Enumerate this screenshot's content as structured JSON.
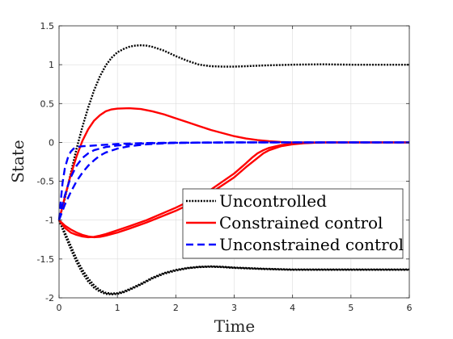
{
  "chart_data": {
    "type": "line",
    "title": "",
    "xlabel": "Time",
    "ylabel": "State",
    "xlim": [
      0,
      6
    ],
    "ylim": [
      -2,
      1.5
    ],
    "xticks": [
      0,
      1,
      2,
      3,
      4,
      5,
      6
    ],
    "yticks": [
      -2,
      -1.5,
      -1,
      -0.5,
      0,
      0.5,
      1,
      1.5
    ],
    "xtick_labels": [
      "0",
      "1",
      "2",
      "3",
      "4",
      "5",
      "6"
    ],
    "ytick_labels": [
      "-2",
      "-1.5",
      "-1",
      "-0.5",
      "0",
      "0.5",
      "1",
      "1.5"
    ],
    "grid": true,
    "legend_position": "lower-right",
    "series": [
      {
        "name": "Uncontrolled",
        "color": "#000000",
        "style": "dotted",
        "lines": [
          [
            [
              0,
              -1
            ],
            [
              0.1,
              -0.72
            ],
            [
              0.2,
              -0.4
            ],
            [
              0.3,
              -0.08
            ],
            [
              0.4,
              0.2
            ],
            [
              0.5,
              0.45
            ],
            [
              0.6,
              0.67
            ],
            [
              0.7,
              0.85
            ],
            [
              0.8,
              0.99
            ],
            [
              0.9,
              1.09
            ],
            [
              1.0,
              1.16
            ],
            [
              1.1,
              1.2
            ],
            [
              1.2,
              1.23
            ],
            [
              1.3,
              1.245
            ],
            [
              1.4,
              1.25
            ],
            [
              1.5,
              1.245
            ],
            [
              1.6,
              1.23
            ],
            [
              1.8,
              1.18
            ],
            [
              2.0,
              1.11
            ],
            [
              2.2,
              1.05
            ],
            [
              2.4,
              1.0
            ],
            [
              2.6,
              0.98
            ],
            [
              2.8,
              0.975
            ],
            [
              3.0,
              0.975
            ],
            [
              3.2,
              0.98
            ],
            [
              3.5,
              0.99
            ],
            [
              4.0,
              1.0
            ],
            [
              4.5,
              1.005
            ],
            [
              5.0,
              1.0
            ],
            [
              5.5,
              1.0
            ],
            [
              6.0,
              1.0
            ]
          ],
          [
            [
              0,
              -1
            ],
            [
              0.1,
              -1.16
            ],
            [
              0.2,
              -1.33
            ],
            [
              0.3,
              -1.5
            ],
            [
              0.4,
              -1.64
            ],
            [
              0.5,
              -1.75
            ],
            [
              0.6,
              -1.84
            ],
            [
              0.7,
              -1.9
            ],
            [
              0.8,
              -1.935
            ],
            [
              0.9,
              -1.945
            ],
            [
              1.0,
              -1.94
            ],
            [
              1.1,
              -1.92
            ],
            [
              1.2,
              -1.89
            ],
            [
              1.4,
              -1.82
            ],
            [
              1.6,
              -1.74
            ],
            [
              1.8,
              -1.68
            ],
            [
              2.0,
              -1.64
            ],
            [
              2.2,
              -1.615
            ],
            [
              2.4,
              -1.6
            ],
            [
              2.6,
              -1.595
            ],
            [
              2.8,
              -1.6
            ],
            [
              3.0,
              -1.61
            ],
            [
              3.5,
              -1.625
            ],
            [
              4.0,
              -1.635
            ],
            [
              5.0,
              -1.635
            ],
            [
              6.0,
              -1.635
            ]
          ],
          [
            [
              0,
              -1
            ],
            [
              0.1,
              -1.19
            ],
            [
              0.2,
              -1.37
            ],
            [
              0.3,
              -1.54
            ],
            [
              0.4,
              -1.68
            ],
            [
              0.5,
              -1.79
            ],
            [
              0.6,
              -1.87
            ],
            [
              0.7,
              -1.92
            ],
            [
              0.8,
              -1.95
            ],
            [
              0.9,
              -1.955
            ],
            [
              1.0,
              -1.95
            ],
            [
              1.1,
              -1.93
            ],
            [
              1.2,
              -1.9
            ],
            [
              1.4,
              -1.83
            ],
            [
              1.6,
              -1.75
            ],
            [
              1.8,
              -1.69
            ],
            [
              2.0,
              -1.65
            ],
            [
              2.2,
              -1.62
            ],
            [
              2.4,
              -1.605
            ],
            [
              2.6,
              -1.6
            ],
            [
              2.8,
              -1.605
            ],
            [
              3.0,
              -1.615
            ],
            [
              3.5,
              -1.63
            ],
            [
              4.0,
              -1.64
            ],
            [
              5.0,
              -1.64
            ],
            [
              6.0,
              -1.64
            ]
          ]
        ]
      },
      {
        "name": "Constrained control",
        "color": "#ff0000",
        "style": "solid",
        "lines": [
          [
            [
              0,
              -1
            ],
            [
              0.1,
              -0.7
            ],
            [
              0.2,
              -0.42
            ],
            [
              0.3,
              -0.18
            ],
            [
              0.4,
              0.02
            ],
            [
              0.5,
              0.17
            ],
            [
              0.6,
              0.28
            ],
            [
              0.7,
              0.35
            ],
            [
              0.8,
              0.4
            ],
            [
              0.9,
              0.425
            ],
            [
              1.0,
              0.435
            ],
            [
              1.2,
              0.44
            ],
            [
              1.4,
              0.43
            ],
            [
              1.6,
              0.4
            ],
            [
              1.8,
              0.36
            ],
            [
              2.0,
              0.31
            ],
            [
              2.2,
              0.26
            ],
            [
              2.4,
              0.21
            ],
            [
              2.6,
              0.16
            ],
            [
              2.8,
              0.12
            ],
            [
              3.0,
              0.08
            ],
            [
              3.2,
              0.05
            ],
            [
              3.4,
              0.03
            ],
            [
              3.6,
              0.015
            ],
            [
              3.8,
              0.005
            ],
            [
              4.0,
              0.0
            ],
            [
              4.5,
              0.0
            ],
            [
              5.0,
              0.0
            ],
            [
              6.0,
              0.0
            ]
          ],
          [
            [
              0,
              -1
            ],
            [
              0.1,
              -1.07
            ],
            [
              0.2,
              -1.12
            ],
            [
              0.3,
              -1.16
            ],
            [
              0.4,
              -1.19
            ],
            [
              0.5,
              -1.21
            ],
            [
              0.6,
              -1.22
            ],
            [
              0.7,
              -1.215
            ],
            [
              0.8,
              -1.2
            ],
            [
              1.0,
              -1.16
            ],
            [
              1.2,
              -1.11
            ],
            [
              1.5,
              -1.03
            ],
            [
              2.0,
              -0.88
            ],
            [
              2.5,
              -0.7
            ],
            [
              3.0,
              -0.45
            ],
            [
              3.2,
              -0.32
            ],
            [
              3.4,
              -0.2
            ],
            [
              3.5,
              -0.14
            ],
            [
              3.6,
              -0.1
            ],
            [
              3.8,
              -0.05
            ],
            [
              4.0,
              -0.025
            ],
            [
              4.2,
              -0.01
            ],
            [
              4.5,
              0.0
            ],
            [
              5.0,
              0.0
            ],
            [
              6.0,
              0.0
            ]
          ],
          [
            [
              0,
              -1
            ],
            [
              0.1,
              -1.1
            ],
            [
              0.2,
              -1.16
            ],
            [
              0.3,
              -1.19
            ],
            [
              0.4,
              -1.21
            ],
            [
              0.5,
              -1.22
            ],
            [
              0.6,
              -1.215
            ],
            [
              0.7,
              -1.2
            ],
            [
              0.8,
              -1.18
            ],
            [
              1.0,
              -1.13
            ],
            [
              1.2,
              -1.08
            ],
            [
              1.5,
              -1.0
            ],
            [
              2.0,
              -0.84
            ],
            [
              2.5,
              -0.66
            ],
            [
              3.0,
              -0.4
            ],
            [
              3.2,
              -0.27
            ],
            [
              3.3,
              -0.2
            ],
            [
              3.4,
              -0.14
            ],
            [
              3.5,
              -0.1
            ],
            [
              3.6,
              -0.07
            ],
            [
              3.8,
              -0.035
            ],
            [
              4.0,
              -0.015
            ],
            [
              4.3,
              -0.005
            ],
            [
              4.6,
              0.0
            ],
            [
              5.0,
              0.0
            ],
            [
              6.0,
              0.0
            ]
          ]
        ]
      },
      {
        "name": "Unconstrained control",
        "color": "#0000ff",
        "style": "dashed",
        "lines": [
          [
            [
              0,
              -1
            ],
            [
              0.03,
              -0.75
            ],
            [
              0.06,
              -0.52
            ],
            [
              0.1,
              -0.33
            ],
            [
              0.15,
              -0.2
            ],
            [
              0.2,
              -0.12
            ],
            [
              0.25,
              -0.08
            ],
            [
              0.3,
              -0.06
            ],
            [
              0.4,
              -0.05
            ],
            [
              0.5,
              -0.045
            ],
            [
              0.7,
              -0.035
            ],
            [
              1.0,
              -0.02
            ],
            [
              1.5,
              -0.008
            ],
            [
              2.0,
              -0.003
            ],
            [
              3.0,
              0.0
            ],
            [
              4.0,
              0.0
            ],
            [
              6.0,
              0.0
            ]
          ],
          [
            [
              0,
              -1
            ],
            [
              0.05,
              -0.82
            ],
            [
              0.1,
              -0.68
            ],
            [
              0.15,
              -0.56
            ],
            [
              0.2,
              -0.45
            ],
            [
              0.3,
              -0.3
            ],
            [
              0.4,
              -0.2
            ],
            [
              0.5,
              -0.14
            ],
            [
              0.6,
              -0.1
            ],
            [
              0.8,
              -0.06
            ],
            [
              1.0,
              -0.04
            ],
            [
              1.3,
              -0.02
            ],
            [
              1.6,
              -0.01
            ],
            [
              2.0,
              -0.005
            ],
            [
              3.0,
              0.0
            ],
            [
              6.0,
              0.0
            ]
          ],
          [
            [
              0,
              -1
            ],
            [
              0.05,
              -0.9
            ],
            [
              0.1,
              -0.8
            ],
            [
              0.2,
              -0.64
            ],
            [
              0.3,
              -0.5
            ],
            [
              0.4,
              -0.39
            ],
            [
              0.5,
              -0.3
            ],
            [
              0.6,
              -0.23
            ],
            [
              0.7,
              -0.17
            ],
            [
              0.8,
              -0.13
            ],
            [
              1.0,
              -0.08
            ],
            [
              1.2,
              -0.05
            ],
            [
              1.5,
              -0.025
            ],
            [
              1.8,
              -0.012
            ],
            [
              2.0,
              -0.008
            ],
            [
              2.5,
              -0.002
            ],
            [
              3.0,
              0.0
            ],
            [
              6.0,
              0.0
            ]
          ]
        ]
      }
    ]
  }
}
